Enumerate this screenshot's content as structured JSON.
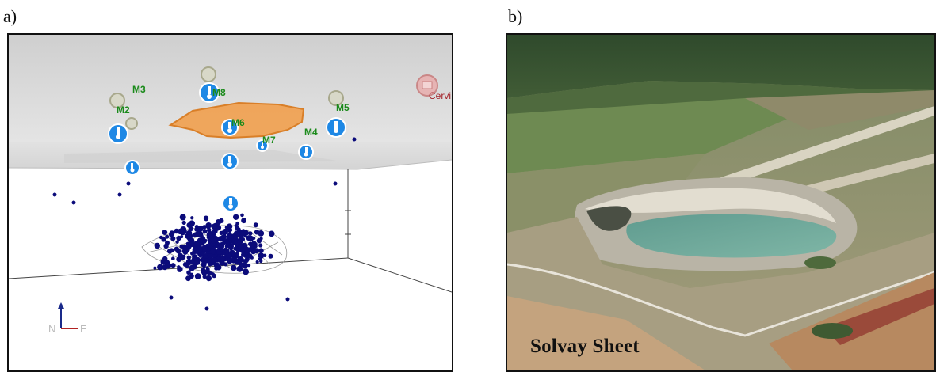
{
  "panels": {
    "a": {
      "label": "a)",
      "stations": [
        {
          "label": "M2"
        },
        {
          "label": "M3"
        },
        {
          "label": "M8"
        },
        {
          "label": "M6"
        },
        {
          "label": "M7"
        },
        {
          "label": "M4"
        },
        {
          "label": "M5"
        }
      ],
      "site_label": "Cervi",
      "axis_n": "N",
      "axis_e": "E",
      "colors": {
        "station_fill": "#1e88e5",
        "station_label": "#1a8a1a",
        "cavity_fill": "#f0a355",
        "cavity_stroke": "#d97a1f",
        "event_dots": "#0b0b7a",
        "site_label": "#a4232a"
      }
    },
    "b": {
      "label": "b)",
      "caption": "Solvay Sheet"
    }
  }
}
